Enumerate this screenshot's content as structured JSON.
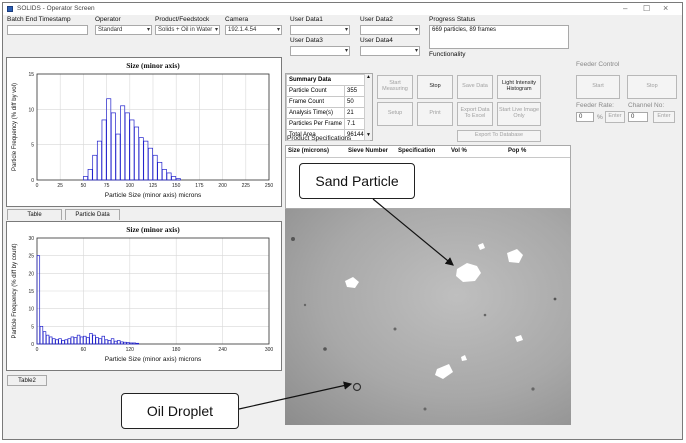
{
  "window": {
    "title": "SOLIDS - Operator Screen",
    "minimize": "–",
    "maximize": "☐",
    "close": "×"
  },
  "header": {
    "batch_end_label": "Batch End Timestamp",
    "operator_label": "Operator",
    "operator_value": "Standard",
    "product_label": "Product/Feedstock",
    "product_value": "Solids + Oil in Water",
    "camera_label": "Camera",
    "camera_value": "192.1.4.54",
    "user_data1_label": "User Data1",
    "user_data2_label": "User Data2",
    "user_data3_label": "User Data3",
    "user_data4_label": "User Data4",
    "progress_label": "Progress Status",
    "progress_value": "669 particles, 89 frames",
    "functionality_label": "Functionality"
  },
  "summary": {
    "title": "Summary Data",
    "rows": [
      {
        "name": "Particle Count",
        "value": "355"
      },
      {
        "name": "Frame Count",
        "value": "50"
      },
      {
        "name": "Analysis Time(s)",
        "value": "21"
      },
      {
        "name": "Particles Per Frame",
        "value": "7.1"
      },
      {
        "name": "Total Area",
        "value": "961440"
      }
    ]
  },
  "buttons": {
    "start_measuring": "Start\nMeasuring",
    "stop": "Stop",
    "save_data": "Save Data",
    "light_intensity": "Light Intensity\nHistogram",
    "setup": "Setup",
    "print": "Print",
    "export_excel": "Export Data\nTo Excel",
    "start_live": "Start Live Image\nOnly",
    "export_db": "Export To Database",
    "product_specs": "Product Specifications"
  },
  "feeder": {
    "control_label": "Feeder Control",
    "start": "Start",
    "stop": "Stop",
    "rate_label": "Feeder Rate:",
    "rate_value": "0",
    "rate_unit": "%",
    "enter1": "Enter",
    "channel_label": "Channel No:",
    "channel_value": "0",
    "enter2": "Enter"
  },
  "spec_table": {
    "cols": [
      "Size (microns)",
      "Sieve Number",
      "Specification",
      "Vol %",
      "Pop %"
    ]
  },
  "tabs": {
    "table": "Table",
    "particle_data": "Particle Data",
    "table2": "Table2"
  },
  "callouts": {
    "sand": "Sand Particle",
    "oil": "Oil Droplet"
  },
  "chart_data": [
    {
      "type": "bar",
      "title": "Size (minor axis)",
      "xlabel": "Particle Size (minor axis) microns",
      "ylabel": "Particle Frequency (% diff by vol)",
      "xlim": [
        0,
        250
      ],
      "ylim": [
        0,
        15
      ],
      "xticks": [
        0,
        25,
        50,
        75,
        100,
        125,
        150,
        175,
        200,
        225,
        250
      ],
      "yticks": [
        0,
        5,
        10,
        15
      ],
      "grid": true,
      "bin_width": 5,
      "x": [
        50,
        55,
        60,
        65,
        70,
        75,
        80,
        85,
        90,
        95,
        100,
        105,
        110,
        115,
        120,
        125,
        130,
        135,
        140,
        145,
        150
      ],
      "values": [
        0.5,
        1.5,
        3.5,
        5.5,
        8.5,
        11.5,
        9.5,
        6.5,
        10.5,
        9.5,
        8.5,
        7.5,
        6.0,
        5.5,
        4.5,
        3.5,
        2.5,
        1.5,
        1.0,
        0.5,
        0.2
      ]
    },
    {
      "type": "bar",
      "title": "Size (minor axis)",
      "xlabel": "Particle Size (minor axis) microns",
      "ylabel": "Particle Frequency (% diff by count)",
      "xlim": [
        0,
        300
      ],
      "ylim": [
        0,
        30
      ],
      "xticks": [
        0,
        60,
        120,
        180,
        240,
        300
      ],
      "yticks": [
        0,
        5,
        10,
        15,
        20,
        25,
        30
      ],
      "grid": true,
      "bin_width": 4,
      "x": [
        0,
        4,
        8,
        12,
        16,
        20,
        24,
        28,
        32,
        36,
        40,
        44,
        48,
        52,
        56,
        60,
        64,
        68,
        72,
        76,
        80,
        84,
        88,
        92,
        96,
        100,
        104,
        108,
        112,
        116,
        120,
        124,
        128
      ],
      "values": [
        25,
        5,
        3.5,
        2.5,
        2,
        1.5,
        1.2,
        1.5,
        1,
        1.2,
        1.5,
        2,
        1.8,
        2.5,
        2,
        2.2,
        1.8,
        3,
        2.5,
        1.8,
        1.5,
        2.2,
        1.2,
        1,
        1.5,
        0.8,
        1,
        0.6,
        0.5,
        0.4,
        0.3,
        0.3,
        0.2
      ]
    }
  ]
}
